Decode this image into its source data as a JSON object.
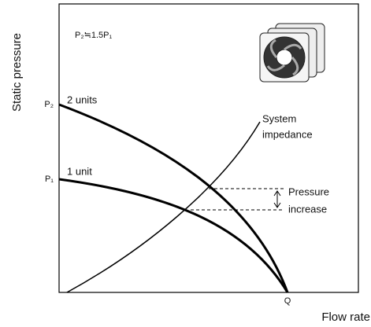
{
  "axes": {
    "y_label": "Static pressure",
    "x_label": "Flow rate"
  },
  "annotation": "P₂≒1.5P₁",
  "ticks": {
    "p2": "P₂",
    "p1": "P₁",
    "q": "Q"
  },
  "curves": {
    "two_units": "2 units",
    "one_unit": "1 unit",
    "system_impedance": [
      "System",
      "impedance"
    ]
  },
  "pressure_increase": [
    "Pressure",
    "increase"
  ]
}
